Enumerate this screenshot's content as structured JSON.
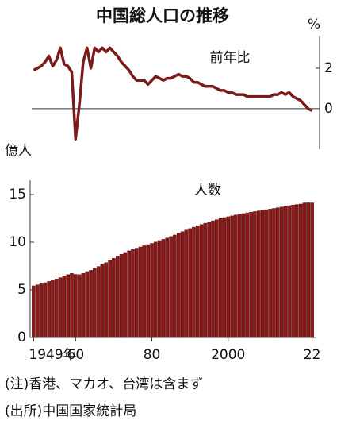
{
  "title": "中国総人口の推移",
  "notes": [
    "(注)香港、マカオ、台湾は含まず",
    "(出所)中国国家統計局"
  ],
  "chart_data": [
    {
      "type": "line",
      "label": "前年比",
      "y_label": "%",
      "color": "#7a1a1a",
      "x": [
        1949,
        1950,
        1951,
        1952,
        1953,
        1954,
        1955,
        1956,
        1957,
        1958,
        1959,
        1960,
        1961,
        1962,
        1963,
        1964,
        1965,
        1966,
        1967,
        1968,
        1969,
        1970,
        1971,
        1972,
        1973,
        1974,
        1975,
        1976,
        1977,
        1978,
        1979,
        1980,
        1981,
        1982,
        1983,
        1984,
        1985,
        1986,
        1987,
        1988,
        1989,
        1990,
        1991,
        1992,
        1993,
        1994,
        1995,
        1996,
        1997,
        1998,
        1999,
        2000,
        2001,
        2002,
        2003,
        2004,
        2005,
        2006,
        2007,
        2008,
        2009,
        2010,
        2011,
        2012,
        2013,
        2014,
        2015,
        2016,
        2017,
        2018,
        2019,
        2020,
        2021,
        2022
      ],
      "values": [
        1.9,
        2.0,
        2.1,
        2.3,
        2.6,
        2.1,
        2.4,
        3.0,
        2.2,
        2.1,
        1.8,
        -1.5,
        0.2,
        2.3,
        3.0,
        2.0,
        3.0,
        2.8,
        3.0,
        2.8,
        3.0,
        2.8,
        2.6,
        2.3,
        2.1,
        1.9,
        1.6,
        1.4,
        1.4,
        1.4,
        1.2,
        1.4,
        1.6,
        1.5,
        1.4,
        1.5,
        1.5,
        1.6,
        1.7,
        1.6,
        1.6,
        1.5,
        1.3,
        1.3,
        1.2,
        1.1,
        1.1,
        1.1,
        1.0,
        0.9,
        0.9,
        0.8,
        0.8,
        0.7,
        0.7,
        0.7,
        0.6,
        0.6,
        0.6,
        0.6,
        0.6,
        0.6,
        0.6,
        0.7,
        0.7,
        0.8,
        0.7,
        0.8,
        0.6,
        0.5,
        0.4,
        0.2,
        0.0,
        -0.1
      ],
      "xlim": [
        1948.5,
        2022.5
      ],
      "ylim": [
        -2,
        3.6
      ],
      "yticks": [
        0,
        2
      ]
    },
    {
      "type": "bar",
      "label": "人数",
      "y_label": "億人",
      "color": "#8b1a1a",
      "x": [
        1949,
        1950,
        1951,
        1952,
        1953,
        1954,
        1955,
        1956,
        1957,
        1958,
        1959,
        1960,
        1961,
        1962,
        1963,
        1964,
        1965,
        1966,
        1967,
        1968,
        1969,
        1970,
        1971,
        1972,
        1973,
        1974,
        1975,
        1976,
        1977,
        1978,
        1979,
        1980,
        1981,
        1982,
        1983,
        1984,
        1985,
        1986,
        1987,
        1988,
        1989,
        1990,
        1991,
        1992,
        1993,
        1994,
        1995,
        1996,
        1997,
        1998,
        1999,
        2000,
        2001,
        2002,
        2003,
        2004,
        2005,
        2006,
        2007,
        2008,
        2009,
        2010,
        2011,
        2012,
        2013,
        2014,
        2015,
        2016,
        2017,
        2018,
        2019,
        2020,
        2021,
        2022
      ],
      "values": [
        5.42,
        5.52,
        5.63,
        5.75,
        5.88,
        6.03,
        6.15,
        6.28,
        6.47,
        6.6,
        6.72,
        6.62,
        6.59,
        6.73,
        6.92,
        7.05,
        7.25,
        7.45,
        7.64,
        7.85,
        8.07,
        8.3,
        8.52,
        8.72,
        8.92,
        9.09,
        9.24,
        9.37,
        9.5,
        9.63,
        9.75,
        9.87,
        10.01,
        10.17,
        10.3,
        10.44,
        10.59,
        10.75,
        10.93,
        11.1,
        11.27,
        11.43,
        11.58,
        11.72,
        11.85,
        11.99,
        12.11,
        12.24,
        12.36,
        12.48,
        12.58,
        12.67,
        12.76,
        12.85,
        12.92,
        13.0,
        13.08,
        13.14,
        13.21,
        13.28,
        13.35,
        13.41,
        13.47,
        13.54,
        13.61,
        13.68,
        13.75,
        13.83,
        13.9,
        13.95,
        14.0,
        14.12,
        14.13,
        14.12
      ],
      "xlim": [
        1948.5,
        2022.5
      ],
      "ylim": [
        0,
        16.5
      ],
      "yticks": [
        0,
        5,
        10,
        15
      ],
      "xticks": [
        {
          "value": 1949,
          "label": "1949年"
        },
        {
          "value": 1960,
          "label": "60"
        },
        {
          "value": 1980,
          "label": "80"
        },
        2000,
        {
          "value": 2022,
          "label": "22"
        }
      ]
    }
  ]
}
